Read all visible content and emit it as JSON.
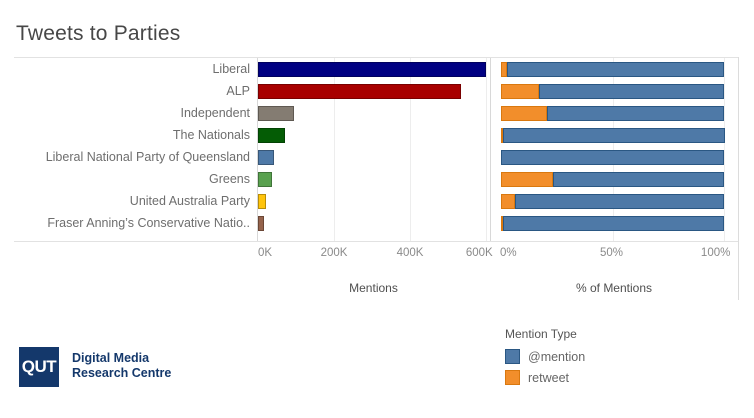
{
  "title": "Tweets to Parties",
  "chart_data": {
    "type": "bar",
    "orientation": "horizontal",
    "categories": [
      "Liberal",
      "ALP",
      "Independent",
      "The Nationals",
      "Liberal National Party of Queensland",
      "Greens",
      "United Australia Party",
      "Fraser Anning’s Conservative Natio.."
    ],
    "bar_colors": [
      "#000082",
      "#a80000",
      "#847c72",
      "#045c05",
      "#4e79a7",
      "#59a14f",
      "#ffc40c",
      "#95634c"
    ],
    "series": [
      {
        "name": "Mentions",
        "values": [
          600000,
          535000,
          95000,
          70000,
          43000,
          38000,
          22000,
          16000
        ]
      },
      {
        "name": "retweet % of Mentions",
        "values": [
          2.5,
          17,
          20.5,
          0.5,
          0,
          23.5,
          6.5,
          1
        ]
      },
      {
        "name": "@mention % of Mentions",
        "values": [
          97.5,
          83,
          79.5,
          99.5,
          100,
          76.5,
          93.5,
          99
        ]
      }
    ],
    "left_axis": {
      "label": "Mentions",
      "ticks": [
        {
          "label": "0K",
          "value": 0
        },
        {
          "label": "200K",
          "value": 200000
        },
        {
          "label": "400K",
          "value": 400000
        },
        {
          "label": "600K",
          "value": 600000
        }
      ],
      "max": 600000
    },
    "right_axis": {
      "label": "% of Mentions",
      "ticks": [
        {
          "label": "0%",
          "value": 0
        },
        {
          "label": "50%",
          "value": 50
        },
        {
          "label": "100%",
          "value": 100
        }
      ],
      "max": 100
    },
    "grid": true,
    "legend_position": "bottom-right"
  },
  "legend": {
    "title": "Mention Type",
    "items": [
      {
        "label": "@mention",
        "color": "#4e79a7"
      },
      {
        "label": "retweet",
        "color": "#f28e2b"
      }
    ]
  },
  "colors": {
    "mention_blue": "#4e79a7",
    "retweet_orange": "#f28e2b",
    "qut_navy": "#14386b"
  },
  "footer": {
    "logo_text": "QUT",
    "org_line1": "Digital Media",
    "org_line2": "Research Centre"
  }
}
